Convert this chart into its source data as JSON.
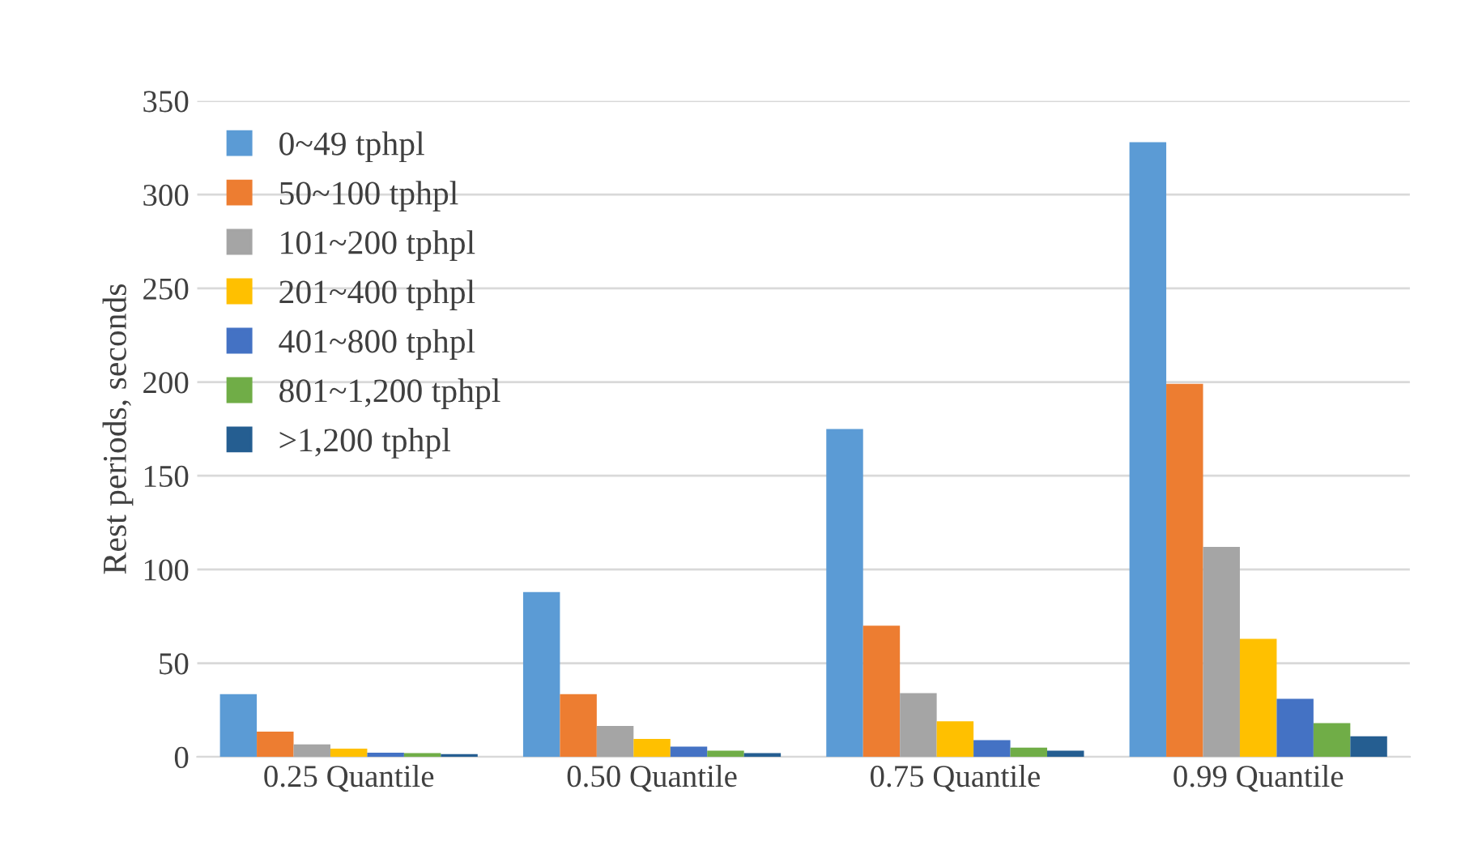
{
  "chart_data": {
    "type": "bar",
    "ylabel": "Rest periods, seconds",
    "categories": [
      "0.25 Quantile",
      "0.50 Quantile",
      "0.75 Quantile",
      "0.99 Quantile"
    ],
    "series": [
      {
        "name": "0~49 tphpl",
        "color": "#5b9bd5",
        "values": [
          33.5,
          88,
          175,
          328
        ]
      },
      {
        "name": "50~100 tphpl",
        "color": "#ed7d31",
        "values": [
          13.5,
          33.5,
          70,
          199
        ]
      },
      {
        "name": "101~200 tphpl",
        "color": "#a5a5a5",
        "values": [
          6.7,
          16.5,
          34,
          112
        ]
      },
      {
        "name": "201~400 tphpl",
        "color": "#ffc000",
        "values": [
          4.4,
          9.6,
          19,
          63
        ]
      },
      {
        "name": "401~800 tphpl",
        "color": "#4472c4",
        "values": [
          2.3,
          5.5,
          9,
          31
        ]
      },
      {
        "name": "801~1,200 tphpl",
        "color": "#70ad47",
        "values": [
          2,
          3.3,
          5,
          18
        ]
      },
      {
        "name": ">1,200 tphpl",
        "color": "#255e91",
        "values": [
          1.5,
          2,
          3.3,
          11
        ]
      }
    ],
    "ylim": [
      0,
      350
    ],
    "yticks": [
      0,
      50,
      100,
      150,
      200,
      250,
      300,
      350
    ],
    "grid": "y",
    "legend": "top left"
  }
}
